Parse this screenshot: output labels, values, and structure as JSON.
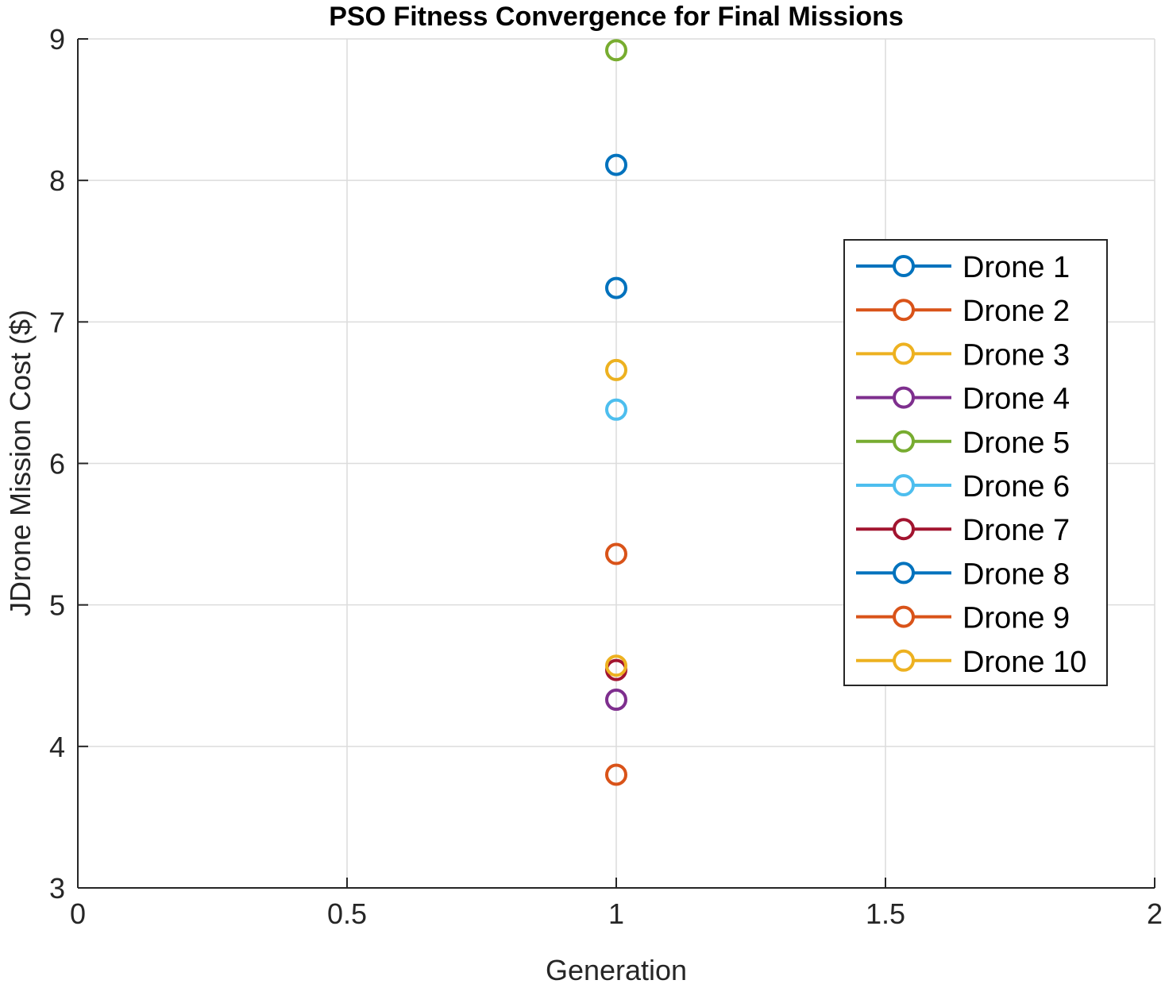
{
  "chart_data": {
    "type": "line",
    "title": "PSO Fitness Convergence for Final Missions",
    "xlabel": "Generation",
    "ylabel": "JDrone Mission Cost ($)",
    "xlim": [
      0,
      2
    ],
    "ylim": [
      3,
      9
    ],
    "xticks": [
      0,
      0.5,
      1,
      1.5,
      2
    ],
    "xtick_labels": [
      "0",
      "0.5",
      "1",
      "1.5",
      "2"
    ],
    "yticks": [
      3,
      4,
      5,
      6,
      7,
      8,
      9
    ],
    "ytick_labels": [
      "3",
      "4",
      "5",
      "6",
      "7",
      "8",
      "9"
    ],
    "grid": true,
    "legend_position": "right",
    "marker": "circle",
    "series": [
      {
        "name": "Drone 1",
        "color": "#0072BD",
        "x": [
          1
        ],
        "y": [
          8.11
        ]
      },
      {
        "name": "Drone 2",
        "color": "#D95319",
        "x": [
          1
        ],
        "y": [
          5.36
        ]
      },
      {
        "name": "Drone 3",
        "color": "#EDB120",
        "x": [
          1
        ],
        "y": [
          6.66
        ]
      },
      {
        "name": "Drone 4",
        "color": "#7E2F8E",
        "x": [
          1
        ],
        "y": [
          4.33
        ]
      },
      {
        "name": "Drone 5",
        "color": "#77AC30",
        "x": [
          1
        ],
        "y": [
          8.92
        ]
      },
      {
        "name": "Drone 6",
        "color": "#4DBEEE",
        "x": [
          1
        ],
        "y": [
          6.38
        ]
      },
      {
        "name": "Drone 7",
        "color": "#A2142F",
        "x": [
          1
        ],
        "y": [
          4.54
        ]
      },
      {
        "name": "Drone 8",
        "color": "#0072BD",
        "x": [
          1
        ],
        "y": [
          7.24
        ]
      },
      {
        "name": "Drone 9",
        "color": "#D95319",
        "x": [
          1
        ],
        "y": [
          3.8
        ]
      },
      {
        "name": "Drone 10",
        "color": "#EDB120",
        "x": [
          1
        ],
        "y": [
          4.57
        ]
      }
    ]
  }
}
